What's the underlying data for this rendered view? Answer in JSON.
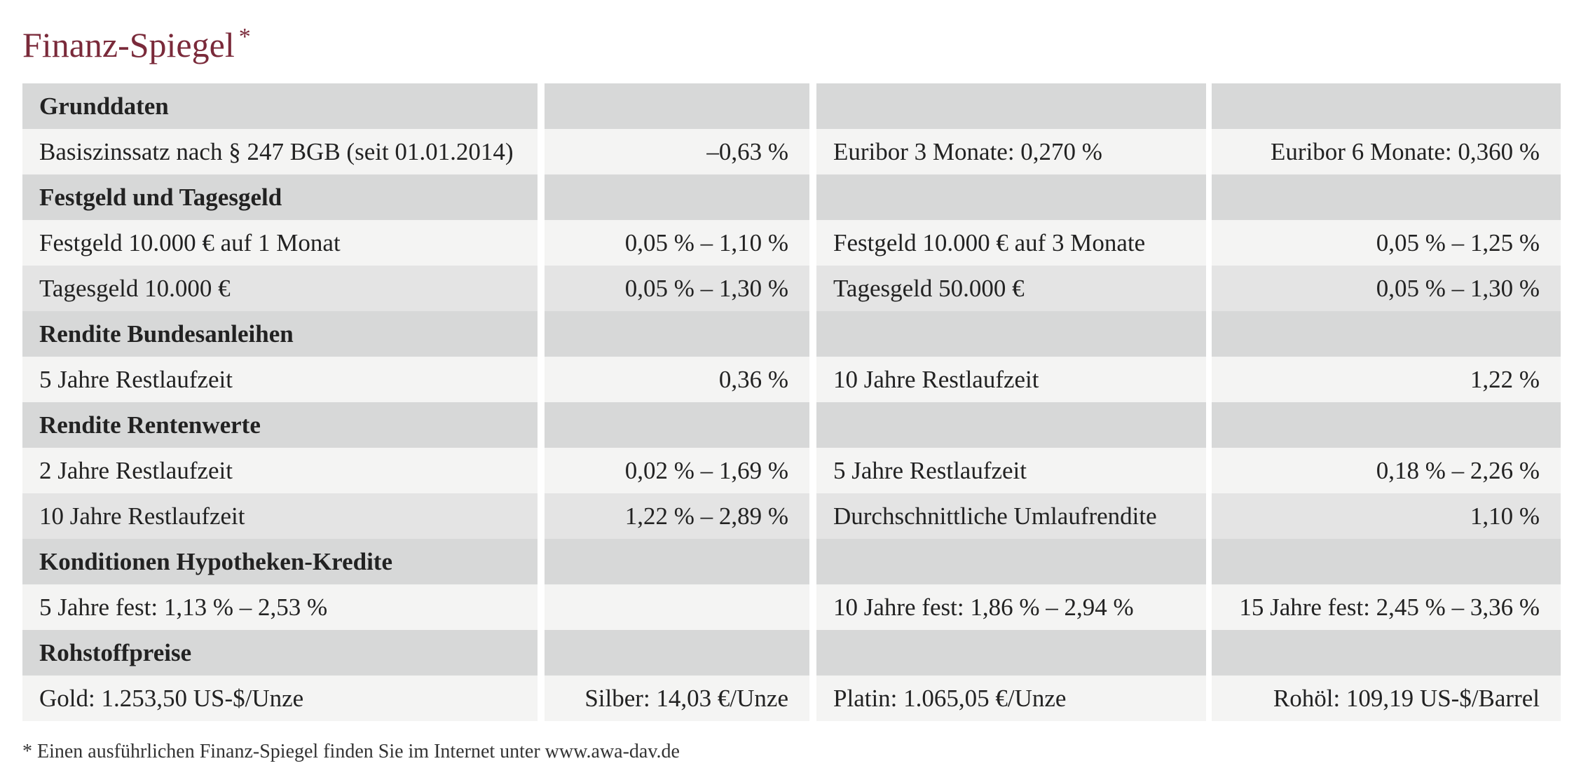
{
  "header": {
    "title": "Finanz-Spiegel",
    "marker": "*"
  },
  "table": {
    "rows": [
      {
        "section": "Grunddaten"
      },
      {
        "cells": [
          "Basiszinssatz nach § 247 BGB (seit 01.01.2014)",
          "–0,63 %",
          "Euribor 3 Monate: 0,270 %",
          "Euribor 6 Monate: 0,360 %"
        ]
      },
      {
        "section": "Festgeld und Tagesgeld"
      },
      {
        "cells": [
          "Festgeld 10.000 € auf 1 Monat",
          "0,05 % – 1,10 %",
          "Festgeld 10.000 € auf 3 Monate",
          "0,05 % – 1,25 %"
        ]
      },
      {
        "cells": [
          "Tagesgeld 10.000 €",
          "0,05 % – 1,30 %",
          "Tagesgeld 50.000 €",
          "0,05 % – 1,30 %"
        ]
      },
      {
        "section": "Rendite Bundesanleihen"
      },
      {
        "cells": [
          "5 Jahre Restlaufzeit",
          "0,36 %",
          "10 Jahre Restlaufzeit",
          "1,22 %"
        ]
      },
      {
        "section": "Rendite Rentenwerte"
      },
      {
        "cells": [
          "2 Jahre Restlaufzeit",
          "0,02 % – 1,69 %",
          "5 Jahre Restlaufzeit",
          "0,18 % – 2,26 %"
        ]
      },
      {
        "cells": [
          "10 Jahre Restlaufzeit",
          "1,22 % – 2,89 %",
          "Durchschnittliche Umlaufrendite",
          "1,10 %"
        ]
      },
      {
        "section": "Konditionen Hypotheken-Kredite"
      },
      {
        "cells": [
          "5 Jahre fest: 1,13 % – 2,53 %",
          null,
          "10 Jahre fest: 1,86 % – 2,94 %",
          "15 Jahre fest: 2,45 % – 3,36 %"
        ]
      },
      {
        "section": "Rohstoffpreise"
      },
      {
        "cells": [
          "Gold: 1.253,50 US-$/Unze",
          "Silber: 14,03 €/Unze",
          "Platin: 1.065,05 €/Unze",
          "Rohöl: 109,19 US-$/Barrel"
        ]
      }
    ]
  },
  "footnote": "* Einen ausführlichen Finanz-Spiegel finden Sie im Internet unter www.awa-dav.de"
}
